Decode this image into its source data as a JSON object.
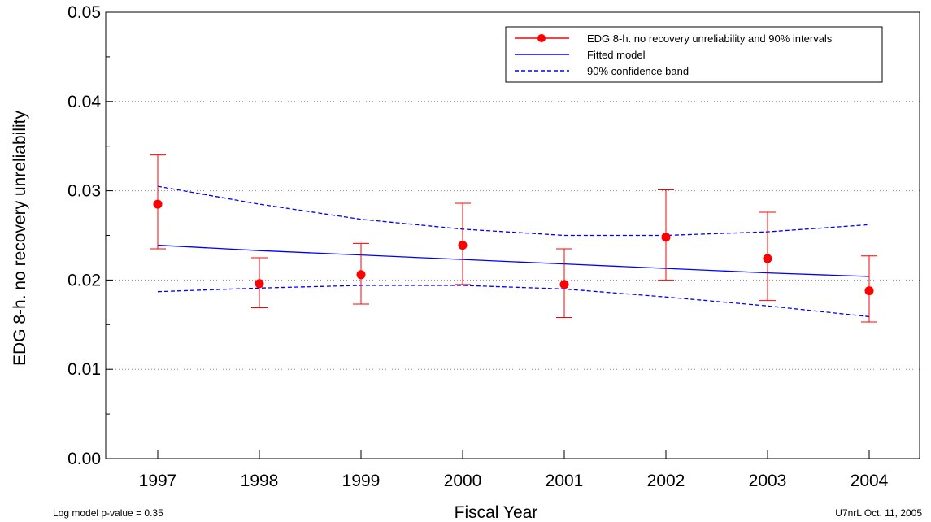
{
  "chart_data": {
    "type": "line",
    "xlabel": "Fiscal Year",
    "ylabel": "EDG 8-h. no recovery unreliability",
    "x": [
      1997,
      1998,
      1999,
      2000,
      2001,
      2002,
      2003,
      2004
    ],
    "x_tick_labels": [
      "1997",
      "1998",
      "1999",
      "2000",
      "2001",
      "2002",
      "2003",
      "2004"
    ],
    "ylim": [
      0.0,
      0.05
    ],
    "y_ticks": [
      0.0,
      0.01,
      0.02,
      0.03,
      0.04,
      0.05
    ],
    "y_tick_labels": [
      "0.00",
      "0.01",
      "0.02",
      "0.03",
      "0.04",
      "0.05"
    ],
    "grid": "horizontal dotted",
    "legend_position": "top-right",
    "series": [
      {
        "name": "EDG 8-h. no recovery unreliability and 90% intervals",
        "style": "red points with error bars",
        "color": "#ff0000",
        "values": [
          0.0285,
          0.0196,
          0.0206,
          0.0239,
          0.0195,
          0.0248,
          0.0224,
          0.0188
        ],
        "lower": [
          0.0235,
          0.0169,
          0.0173,
          0.0195,
          0.0158,
          0.02,
          0.0177,
          0.0153
        ],
        "upper": [
          0.034,
          0.0225,
          0.0241,
          0.0286,
          0.0235,
          0.0301,
          0.0276,
          0.0227
        ]
      },
      {
        "name": "Fitted model",
        "style": "solid",
        "color": "#0000ff",
        "values": [
          0.0239,
          0.0233,
          0.0228,
          0.0223,
          0.0218,
          0.0213,
          0.0208,
          0.0204
        ]
      },
      {
        "name": "90% confidence band",
        "style": "dashed",
        "color": "#0000ff",
        "upper": [
          0.0305,
          0.0285,
          0.0268,
          0.0257,
          0.025,
          0.025,
          0.0254,
          0.0262
        ],
        "lower": [
          0.0187,
          0.0191,
          0.0194,
          0.0194,
          0.019,
          0.0181,
          0.0171,
          0.0159
        ]
      }
    ]
  },
  "footer": {
    "p_value": "Log model p-value = 0.35",
    "stamp": "U7nrL  Oct. 11, 2005"
  }
}
